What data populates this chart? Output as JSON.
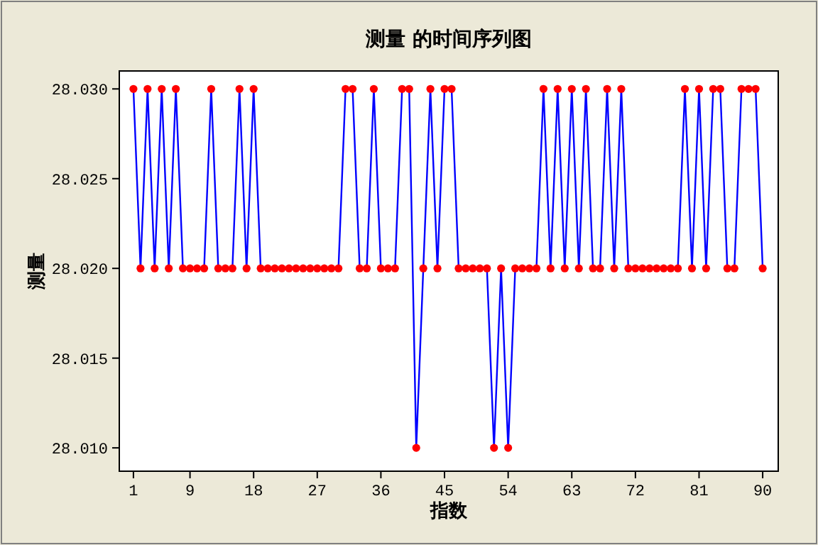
{
  "chart_data": {
    "type": "line",
    "title": "测量 的时间序列图",
    "xlabel": "指数",
    "ylabel": "测量",
    "x": [
      1,
      2,
      3,
      4,
      5,
      6,
      7,
      8,
      9,
      10,
      11,
      12,
      13,
      14,
      15,
      16,
      17,
      18,
      19,
      20,
      21,
      22,
      23,
      24,
      25,
      26,
      27,
      28,
      29,
      30,
      31,
      32,
      33,
      34,
      35,
      36,
      37,
      38,
      39,
      40,
      41,
      42,
      43,
      44,
      45,
      46,
      47,
      48,
      49,
      50,
      51,
      52,
      53,
      54,
      55,
      56,
      57,
      58,
      59,
      60,
      61,
      62,
      63,
      64,
      65,
      66,
      67,
      68,
      69,
      70,
      71,
      72,
      73,
      74,
      75,
      76,
      77,
      78,
      79,
      80,
      81,
      82,
      83,
      84,
      85,
      86,
      87,
      88,
      89,
      90
    ],
    "series": [
      {
        "color": "#0000ff",
        "colors": [
          "#ff0000",
          "#ff0000",
          "#ff0000",
          "#ff0000",
          "#ff0000",
          "#ff0000",
          "#ff0000",
          "#ff0000",
          "#ff0000",
          "#ff0000",
          "#ff0000",
          "#ff0000",
          "#ff0000",
          "#ff0000",
          "#ff0000",
          "#ff0000",
          "#ff0000",
          "#ff0000",
          "#ff0000",
          "#ff0000",
          "#ff0000",
          "#ff0000",
          "#ff0000",
          "#ff0000",
          "#ff0000",
          "#ff0000",
          "#ff0000",
          "#ff0000",
          "#ff0000",
          "#ff0000",
          "#ff0000",
          "#ff0000",
          "#ff0000",
          "#ff0000",
          "#ff0000",
          "#ff0000",
          "#ff0000",
          "#ff0000",
          "#ff0000",
          "#ff0000",
          "#ff0000",
          "#ff0000",
          "#ff0000",
          "#ff0000",
          "#ff0000",
          "#ff0000",
          "#ff0000",
          "#ff0000",
          "#ff0000",
          "#ff0000",
          "#ff0000",
          "#ff0000",
          "#ff0000",
          "#ff0000",
          "#ff0000",
          "#ff0000",
          "#ff0000",
          "#ff0000",
          "#ff0000",
          "#ff0000",
          "#ff0000",
          "#ff0000",
          "#ff0000",
          "#ff0000",
          "#ff0000",
          "#ff0000",
          "#ff0000",
          "#ff0000",
          "#ff0000",
          "#ff0000",
          "#ff0000",
          "#ff0000",
          "#ff0000",
          "#ff0000",
          "#ff0000",
          "#ff0000",
          "#ff0000",
          "#ff0000",
          "#ff0000",
          "#ff0000",
          "#ff0000",
          "#ff0000",
          "#ff0000",
          "#ff0000",
          "#ff0000",
          "#ff0000",
          "#ff0000",
          "#ff0000",
          "#ff0000",
          "#ff0000"
        ],
        "values": [
          28.03,
          28.02,
          28.03,
          28.02,
          28.03,
          28.02,
          28.03,
          28.02,
          28.02,
          28.02,
          28.02,
          28.03,
          28.02,
          28.02,
          28.02,
          28.03,
          28.02,
          28.03,
          28.02,
          28.02,
          28.02,
          28.02,
          28.02,
          28.02,
          28.02,
          28.02,
          28.02,
          28.02,
          28.02,
          28.02,
          28.03,
          28.03,
          28.02,
          28.02,
          28.03,
          28.02,
          28.02,
          28.02,
          28.03,
          28.03,
          28.01,
          28.02,
          28.03,
          28.02,
          28.03,
          28.03,
          28.02,
          28.02,
          28.02,
          28.02,
          28.02,
          28.01,
          28.02,
          28.01,
          28.02,
          28.02,
          28.02,
          28.02,
          28.03,
          28.02,
          28.03,
          28.02,
          28.03,
          28.02,
          28.03,
          28.02,
          28.02,
          28.03,
          28.02,
          28.03,
          28.02,
          28.02,
          28.02,
          28.02,
          28.02,
          28.02,
          28.02,
          28.02,
          28.03,
          28.02,
          28.03,
          28.02,
          28.03,
          28.03,
          28.02,
          28.02,
          28.03,
          28.03,
          28.03,
          28.02
        ]
      }
    ],
    "marker": "circle",
    "line_style": "solid",
    "grid": false,
    "xlim": [
      -1,
      92.2
    ],
    "xticks": [
      1,
      9,
      18,
      27,
      36,
      45,
      54,
      63,
      72,
      81,
      90
    ],
    "ylim": [
      28.0087,
      28.031
    ],
    "yticks": [
      {
        "value": 28.01,
        "label": "28.010"
      },
      {
        "value": 28.015,
        "label": "28.015"
      },
      {
        "value": 28.02,
        "label": "28.020"
      },
      {
        "value": 28.025,
        "label": "28.025"
      },
      {
        "value": 28.03,
        "label": "28.030"
      }
    ]
  }
}
